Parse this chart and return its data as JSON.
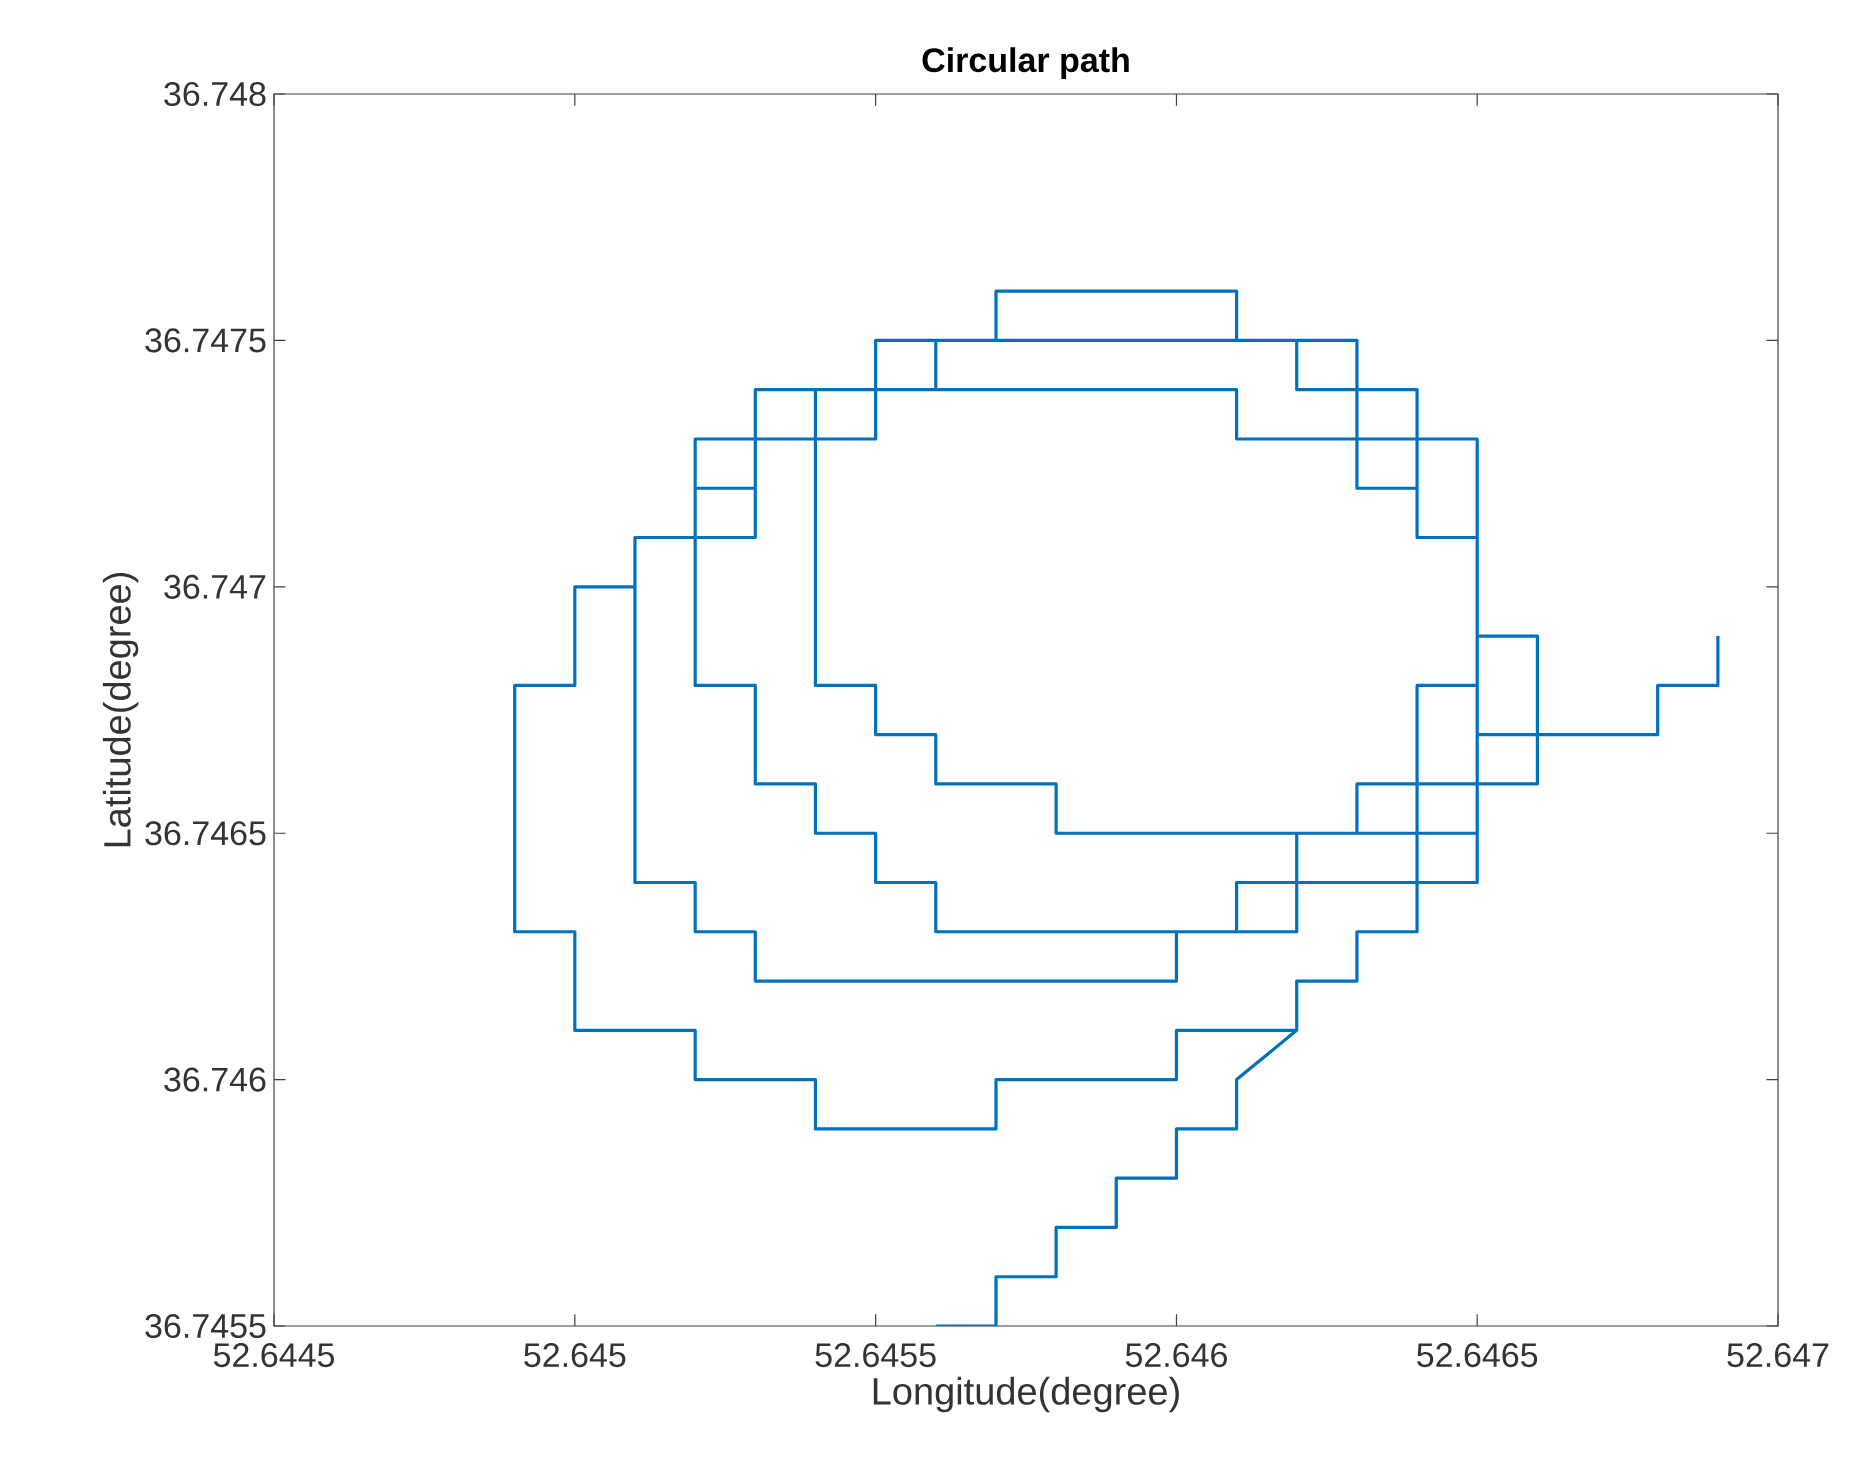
{
  "chart_data": {
    "type": "line",
    "title": "Circular path",
    "xlabel": "Longitude(degree)",
    "ylabel": "Latitude(degree)",
    "xlim": [
      52.6445,
      52.647
    ],
    "ylim": [
      36.7455,
      36.748
    ],
    "xticks": [
      52.6445,
      52.645,
      52.6455,
      52.646,
      52.6465,
      52.647
    ],
    "yticks": [
      36.7455,
      36.746,
      36.7465,
      36.747,
      36.7475,
      36.748
    ],
    "marker": "none",
    "line_style": "solid",
    "grid": false,
    "series": [
      {
        "color": "#0072bd",
        "x": [
          52.6456,
          52.6457,
          52.6457,
          52.6458,
          52.6458,
          52.6459,
          52.6459,
          52.646,
          52.646,
          52.6461,
          52.6461,
          52.6462,
          52.6462,
          52.6463,
          52.6463,
          52.6464,
          52.6464,
          52.6465,
          52.6465,
          52.6466,
          52.6466,
          52.6463,
          52.6463,
          52.6458,
          52.6458,
          52.6456,
          52.6456,
          52.6455,
          52.6455,
          52.6454,
          52.6454,
          52.6461,
          52.6461,
          52.6465,
          52.6465,
          52.6461,
          52.6461,
          52.6456,
          52.6456,
          52.6455,
          52.6455,
          52.6454,
          52.6454,
          52.6453,
          52.6453,
          52.6452,
          52.6452,
          52.6455,
          52.6455,
          52.6463,
          52.6463,
          52.6464,
          null,
          52.6462,
          52.646,
          52.646,
          52.6457,
          52.6457,
          52.6454,
          52.6454,
          52.6452,
          52.6452,
          52.645,
          52.645,
          52.6449,
          52.6449,
          52.645,
          52.645,
          52.6451,
          52.6451,
          52.6452,
          52.6452,
          52.6453,
          52.6453,
          52.646,
          52.646,
          null,
          52.6451,
          52.6451,
          52.6453,
          52.6453,
          52.6454,
          null,
          52.6452,
          52.6453,
          null,
          52.6456,
          52.6456,
          null,
          52.6457,
          52.6457,
          52.6461,
          52.6461,
          null,
          52.6462,
          52.6462,
          52.6464,
          52.6464,
          52.6465,
          null,
          52.6461,
          52.6462,
          52.6462,
          null,
          52.6463,
          52.6465,
          null,
          52.6465,
          52.6468,
          52.6468,
          52.6469,
          52.6469
        ],
        "values": [
          36.7455,
          36.7455,
          36.7456,
          36.7456,
          36.7457,
          36.7457,
          36.7458,
          36.7458,
          36.7459,
          36.7459,
          36.746,
          36.7461,
          36.7462,
          36.7462,
          36.7463,
          36.7463,
          36.7468,
          36.7468,
          36.7469,
          36.7469,
          36.7466,
          36.7466,
          36.7465,
          36.7465,
          36.7466,
          36.7466,
          36.7467,
          36.7467,
          36.7468,
          36.7468,
          36.7474,
          36.7474,
          36.7473,
          36.7473,
          36.7464,
          36.7464,
          36.7463,
          36.7463,
          36.7464,
          36.7464,
          36.7465,
          36.7465,
          36.7466,
          36.7466,
          36.7468,
          36.7468,
          36.7473,
          36.7473,
          36.7475,
          36.7475,
          36.7472,
          36.7472,
          null,
          36.7461,
          36.7461,
          36.746,
          36.746,
          36.7459,
          36.7459,
          36.746,
          36.746,
          36.7461,
          36.7461,
          36.7463,
          36.7463,
          36.7468,
          36.7468,
          36.747,
          36.747,
          36.7464,
          36.7464,
          36.7463,
          36.7463,
          36.7462,
          36.7462,
          36.7463,
          null,
          36.747,
          36.7471,
          36.7471,
          36.7474,
          36.7474,
          null,
          36.7472,
          36.7472,
          null,
          36.7474,
          36.7475,
          null,
          36.7475,
          36.7476,
          36.7476,
          36.7475,
          null,
          36.7475,
          36.7474,
          36.7474,
          36.7471,
          36.7471,
          null,
          36.7463,
          36.7463,
          36.7465,
          null,
          36.7465,
          36.7465,
          null,
          36.7467,
          36.7467,
          36.7468,
          36.7468,
          36.7469
        ]
      }
    ]
  }
}
